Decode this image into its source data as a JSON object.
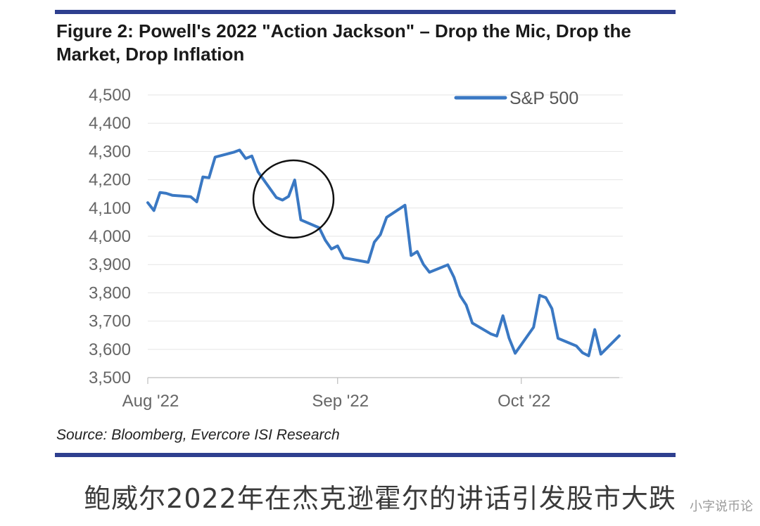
{
  "header": {
    "title": "Figure 2: Powell's 2022 \"Action Jackson\" – Drop the Mic, Drop the Market, Drop Inflation"
  },
  "footer": {
    "source": "Source: Bloomberg, Evercore ISI Research",
    "caption": "鲍威尔2022年在杰克逊霍尔的讲话引发股市大跌",
    "watermark": "小字说币论"
  },
  "colors": {
    "line": "#3a78c3",
    "rule": "#2e3f8f",
    "grid": "#e6e6e6",
    "annotation": "#111111"
  },
  "chart_data": {
    "type": "line",
    "title": "Figure 2: Powell's 2022 \"Action Jackson\" – Drop the Mic, Drop the Market, Drop Inflation",
    "xlabel": "",
    "ylabel": "",
    "ylim": [
      3500,
      4500
    ],
    "y_ticks": [
      "4,500",
      "4,400",
      "4,300",
      "4,200",
      "4,100",
      "4,000",
      "3,900",
      "3,800",
      "3,700",
      "3,600",
      "3,500"
    ],
    "x_tick_labels": [
      "Aug '22",
      "Sep '22",
      "Oct '22"
    ],
    "xlim": [
      "2022-08-01",
      "2022-10-17"
    ],
    "grid": true,
    "legend_position": "top-right",
    "annotation": "circle around the late-August drop (Jackson Hole speech)",
    "series": [
      {
        "name": "S&P 500",
        "x": [
          "2022-08-01",
          "2022-08-02",
          "2022-08-03",
          "2022-08-04",
          "2022-08-05",
          "2022-08-08",
          "2022-08-09",
          "2022-08-10",
          "2022-08-11",
          "2022-08-12",
          "2022-08-15",
          "2022-08-16",
          "2022-08-17",
          "2022-08-18",
          "2022-08-19",
          "2022-08-22",
          "2022-08-23",
          "2022-08-24",
          "2022-08-25",
          "2022-08-26",
          "2022-08-29",
          "2022-08-30",
          "2022-08-31",
          "2022-09-01",
          "2022-09-02",
          "2022-09-06",
          "2022-09-07",
          "2022-09-08",
          "2022-09-09",
          "2022-09-12",
          "2022-09-13",
          "2022-09-14",
          "2022-09-15",
          "2022-09-16",
          "2022-09-19",
          "2022-09-20",
          "2022-09-21",
          "2022-09-22",
          "2022-09-23",
          "2022-09-26",
          "2022-09-27",
          "2022-09-28",
          "2022-09-29",
          "2022-09-30",
          "2022-10-03",
          "2022-10-04",
          "2022-10-05",
          "2022-10-06",
          "2022-10-07",
          "2022-10-10",
          "2022-10-11",
          "2022-10-12",
          "2022-10-13",
          "2022-10-14",
          "2022-10-17"
        ],
        "values": [
          4119,
          4091,
          4155,
          4152,
          4145,
          4140,
          4122,
          4210,
          4207,
          4280,
          4297,
          4305,
          4275,
          4284,
          4228,
          4137,
          4128,
          4141,
          4199,
          4058,
          4030,
          3986,
          3955,
          3966,
          3924,
          3908,
          3979,
          4006,
          4067,
          4110,
          3932,
          3946,
          3901,
          3873,
          3899,
          3855,
          3790,
          3757,
          3693,
          3655,
          3647,
          3719,
          3640,
          3586,
          3678,
          3791,
          3783,
          3744,
          3639,
          3612,
          3588,
          3577,
          3670,
          3583,
          3648
        ]
      }
    ]
  }
}
